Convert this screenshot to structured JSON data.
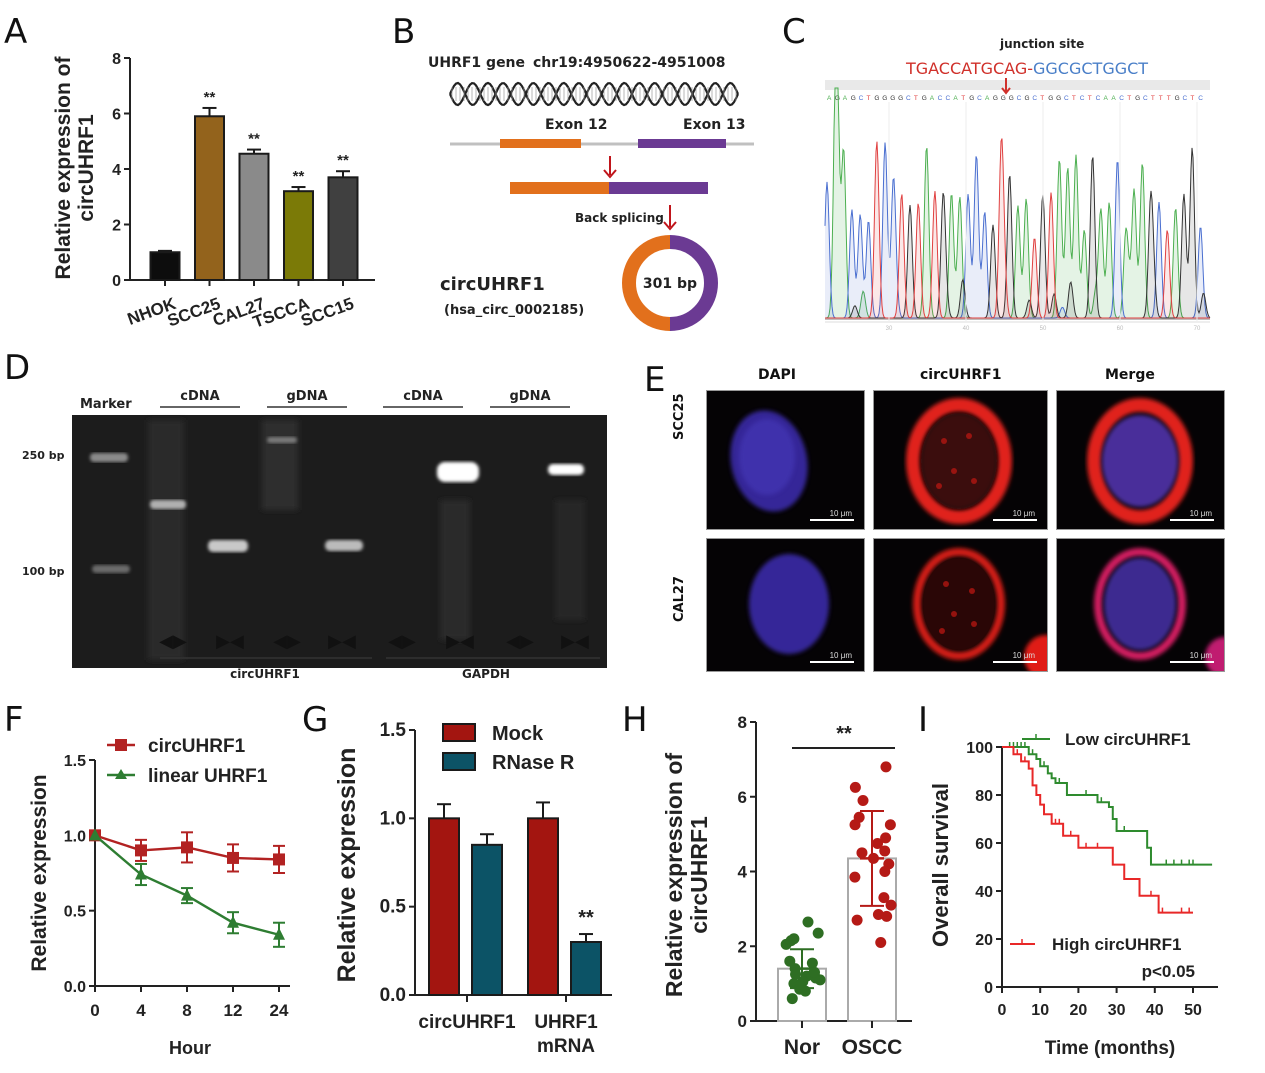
{
  "panels": {
    "A": {
      "letter": "A"
    },
    "B": {
      "letter": "B",
      "gene_label": "UHRF1 gene",
      "coords": "chr19:4950622-4951008",
      "exon_left": "Exon 12",
      "exon_right": "Exon 13",
      "back_splicing": "Back splicing",
      "circ_name": "circUHRF1",
      "circ_id": "(hsa_circ_0002185)",
      "circ_size": "301 bp",
      "colors": {
        "exon12": "#e2701c",
        "exon13": "#6b3a93",
        "arrow": "#c0151b"
      }
    },
    "C": {
      "letter": "C",
      "junction_label": "junction site",
      "seq_left": "TGACCATGCAG-",
      "seq_right": "GGCGCTGGCT",
      "base_calls": "AGAGCTGGGGCTGACCATGCAGGGCGCTGGCTCTCAACTGCTTTGCTC",
      "ticks": [
        "30",
        "40",
        "50",
        "60",
        "70"
      ],
      "colors": {
        "left": "#d0302a",
        "right": "#4a7fc8"
      }
    },
    "D": {
      "letter": "D",
      "marker_label": "Marker",
      "lane_groups": [
        "cDNA",
        "gDNA",
        "cDNA",
        "gDNA"
      ],
      "size_labels": [
        "250 bp",
        "100 bp"
      ],
      "target_labels": [
        "circUHRF1",
        "GAPDH"
      ],
      "primer_symbols": [
        "◀▶",
        "▶◀",
        "◀▶",
        "▶◀",
        "◀▶",
        "▶◀",
        "◀▶",
        "▶◀"
      ]
    },
    "E": {
      "letter": "E",
      "columns": [
        "DAPI",
        "circUHRF1",
        "Merge"
      ],
      "rows": [
        "SCC25",
        "CAL27"
      ],
      "scale_bar": "10 μm"
    },
    "F": {
      "letter": "F"
    },
    "G": {
      "letter": "G"
    },
    "H": {
      "letter": "H"
    },
    "I": {
      "letter": "I"
    }
  },
  "chart_data": [
    {
      "id": "A",
      "type": "bar",
      "title": "",
      "xlabel": "",
      "ylabel": "Relative expression of circUHRF1",
      "categories": [
        "NHOK",
        "SCC25",
        "CAL27",
        "TSCCA",
        "SCC15"
      ],
      "values": [
        1.0,
        5.9,
        4.55,
        3.2,
        3.7
      ],
      "errors": [
        0.05,
        0.3,
        0.15,
        0.15,
        0.22
      ],
      "annotations": [
        "",
        "**",
        "**",
        "**",
        "**"
      ],
      "colors": [
        "#0d0d0d",
        "#93631c",
        "#8a8a8a",
        "#7b7a07",
        "#404040"
      ],
      "ylim": [
        0,
        8
      ],
      "yticks": [
        0,
        2,
        4,
        6,
        8
      ],
      "grid": false
    },
    {
      "id": "F",
      "type": "line",
      "xlabel": "Hour",
      "ylabel": "Relative expression",
      "x": [
        "0",
        "4",
        "8",
        "12",
        "24"
      ],
      "series": [
        {
          "name": "circUHRF1",
          "values": [
            1.0,
            0.9,
            0.92,
            0.85,
            0.84
          ],
          "errors": [
            0.0,
            0.07,
            0.1,
            0.09,
            0.09
          ],
          "color": "#b22222",
          "marker": "square"
        },
        {
          "name": "linear UHRF1",
          "values": [
            1.0,
            0.74,
            0.6,
            0.42,
            0.34
          ],
          "errors": [
            0.0,
            0.07,
            0.05,
            0.07,
            0.08
          ],
          "color": "#2e7d32",
          "marker": "triangle"
        }
      ],
      "ylim": [
        0,
        1.5
      ],
      "yticks": [
        "0.0",
        "0.5",
        "1.0",
        "1.5"
      ],
      "legend": "top-right",
      "grid": false
    },
    {
      "id": "G",
      "type": "bar",
      "xlabel": "",
      "ylabel": "Relative expression",
      "categories": [
        "circUHRF1",
        "UHRF1 mRNA"
      ],
      "series": [
        {
          "name": "Mock",
          "values": [
            1.0,
            1.0
          ],
          "errors": [
            0.08,
            0.09
          ],
          "color": "#a31510"
        },
        {
          "name": "RNase R",
          "values": [
            0.85,
            0.3
          ],
          "errors": [
            0.06,
            0.045
          ],
          "color": "#0c5366"
        }
      ],
      "annotations": [
        {
          "category": "UHRF1 mRNA",
          "series": "RNase R",
          "text": "**"
        }
      ],
      "ylim": [
        0,
        1.5
      ],
      "yticks": [
        "0.0",
        "0.5",
        "1.0",
        "1.5"
      ],
      "legend": "top",
      "grid": false
    },
    {
      "id": "H",
      "type": "scatter",
      "xlabel": "",
      "ylabel": "Relative expression of circUHRF1",
      "categories": [
        "Nor",
        "OSCC"
      ],
      "means": [
        1.4,
        4.35
      ],
      "sd": [
        0.52,
        1.27
      ],
      "points": [
        [
          2.65,
          2.35,
          2.2,
          2.05,
          2.15,
          1.55,
          1.6,
          1.4,
          1.3,
          1.25,
          1.2,
          1.15,
          1.1,
          1.05,
          1.0,
          0.95,
          0.85,
          0.8,
          0.6,
          1.3
        ],
        [
          6.8,
          6.25,
          5.9,
          5.45,
          5.25,
          5.25,
          4.9,
          4.75,
          4.55,
          4.5,
          4.35,
          4.2,
          4.0,
          3.85,
          3.3,
          3.1,
          2.85,
          2.8,
          2.7,
          2.1
        ]
      ],
      "colors": [
        "#2e6e23",
        "#b51a16"
      ],
      "significance": "**",
      "ylim": [
        0,
        8
      ],
      "yticks": [
        0,
        2,
        4,
        6,
        8
      ],
      "grid": false
    },
    {
      "id": "I",
      "type": "line",
      "subtype": "kaplan-meier",
      "xlabel": "Time (months)",
      "ylabel": "Overall survival",
      "xlim": [
        0,
        55
      ],
      "ylim": [
        0,
        100
      ],
      "xticks": [
        0,
        10,
        20,
        30,
        40,
        50
      ],
      "yticks": [
        0,
        20,
        40,
        60,
        80,
        100
      ],
      "annotation": "p<0.05",
      "series": [
        {
          "name": "Low circUHRF1",
          "color": "#2e8b2e",
          "steps": [
            [
              0,
              100
            ],
            [
              6,
              100
            ],
            [
              7,
              97
            ],
            [
              9,
              95
            ],
            [
              10,
              92
            ],
            [
              12,
              89
            ],
            [
              13,
              87
            ],
            [
              14,
              85
            ],
            [
              17,
              80
            ],
            [
              24,
              80
            ],
            [
              25,
              77
            ],
            [
              28,
              75
            ],
            [
              29,
              70
            ],
            [
              30,
              65
            ],
            [
              33,
              65
            ],
            [
              37,
              65
            ],
            [
              38,
              58
            ],
            [
              39,
              51
            ],
            [
              55,
              51
            ]
          ],
          "censored": [
            2,
            3,
            4,
            5,
            6,
            8,
            9,
            11,
            13,
            15,
            22,
            26,
            30,
            32,
            43,
            45,
            47,
            49,
            50
          ]
        },
        {
          "name": "High circUHRF1",
          "color": "#e82828",
          "steps": [
            [
              0,
              100
            ],
            [
              2,
              100
            ],
            [
              3,
              97
            ],
            [
              5,
              94
            ],
            [
              7,
              91
            ],
            [
              8,
              84
            ],
            [
              9,
              80
            ],
            [
              10,
              76
            ],
            [
              11,
              72
            ],
            [
              13,
              68
            ],
            [
              16,
              63
            ],
            [
              20,
              58
            ],
            [
              26,
              58
            ],
            [
              29,
              51
            ],
            [
              32,
              45
            ],
            [
              36,
              38
            ],
            [
              41,
              31
            ],
            [
              50,
              31
            ]
          ],
          "censored": [
            4,
            6,
            14,
            15,
            18,
            22,
            25,
            39,
            42,
            47,
            49
          ]
        }
      ],
      "legend": "inside",
      "grid": false
    }
  ]
}
